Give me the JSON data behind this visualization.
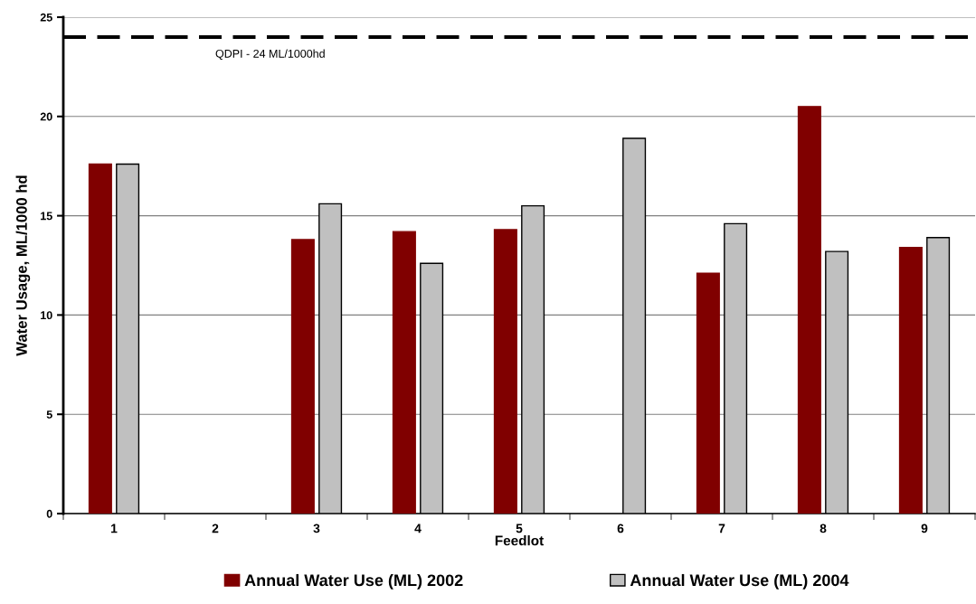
{
  "chart_data": {
    "type": "bar",
    "xlabel": "Feedlot",
    "ylabel": "Water Usage, ML/1000 hd",
    "categories": [
      "1",
      "2",
      "3",
      "4",
      "5",
      "6",
      "7",
      "8",
      "9"
    ],
    "series": [
      {
        "name": "Annual Water Use (ML) 2002",
        "color": "#800000",
        "values": [
          17.6,
          null,
          13.8,
          14.2,
          14.3,
          null,
          12.1,
          20.5,
          13.4
        ]
      },
      {
        "name": "Annual Water Use (ML) 2004",
        "color": "#c0c0c0",
        "values": [
          17.6,
          null,
          15.6,
          12.6,
          15.5,
          18.9,
          14.6,
          13.2,
          13.9
        ]
      }
    ],
    "ylim": [
      0,
      25
    ],
    "yticks": [
      0,
      5,
      10,
      15,
      20,
      25
    ],
    "grid": "y",
    "legend": "bottom",
    "ref_lines": [
      {
        "axis": "y",
        "value": 24,
        "label": "QDPI - 24 ML/1000hd",
        "color": "#000000",
        "line_style": "dashed"
      }
    ]
  }
}
